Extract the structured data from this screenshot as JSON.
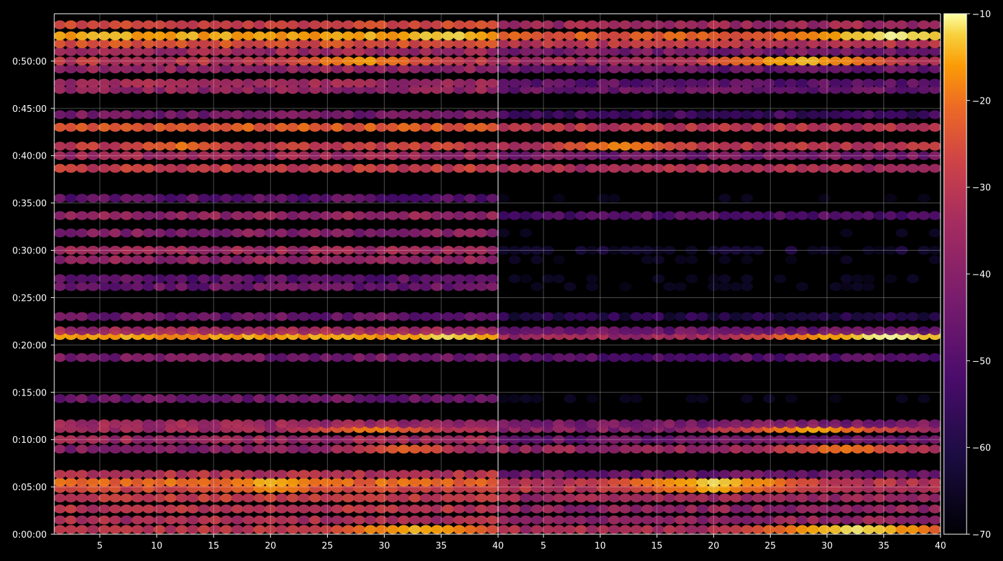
{
  "chart_data": {
    "type": "heatmap",
    "title": "",
    "xlabel": "",
    "ylabel": "",
    "colormap": "inferno",
    "background": "#000000",
    "grid": true,
    "panels": [
      {
        "name": "",
        "x_range": [
          1,
          40
        ],
        "x_ticks": [
          5,
          10,
          15,
          20,
          25,
          30,
          35,
          40
        ],
        "x_tick_labels": [
          "5",
          "10",
          "15",
          "20",
          "25",
          "30",
          "35",
          "40"
        ]
      },
      {
        "name": "",
        "x_range": [
          1,
          40
        ],
        "x_ticks": [
          5,
          10,
          15,
          20,
          25,
          30,
          35,
          40
        ],
        "x_tick_labels": [
          "5",
          "10",
          "15",
          "20",
          "25",
          "30",
          "35",
          "40"
        ]
      }
    ],
    "y_range_seconds": [
      0,
      3300
    ],
    "y_ticks_seconds": [
      0,
      300,
      600,
      900,
      1200,
      1500,
      1800,
      2100,
      2400,
      2700,
      3000
    ],
    "y_tick_labels": [
      "0:00:00",
      "0:05:00",
      "0:10:00",
      "0:15:00",
      "0:20:00",
      "0:25:00",
      "0:30:00",
      "0:35:00",
      "0:40:00",
      "0:45:00",
      "0:50:00"
    ],
    "colorbar": {
      "range": [
        -70,
        -10
      ],
      "ticks": [
        -70,
        -60,
        -50,
        -40,
        -30,
        -20,
        -10
      ],
      "tick_labels": [
        "−70",
        "−60",
        "−50",
        "−40",
        "−30",
        "−20",
        "−10"
      ]
    },
    "bands_seconds_db": [
      {
        "t": 30,
        "a": -40,
        "b": -42,
        "peak_x": 33,
        "peak_db": -18
      },
      {
        "t": 90,
        "a": -42,
        "b": -46
      },
      {
        "t": 160,
        "a": -40,
        "b": -46
      },
      {
        "t": 230,
        "a": -38,
        "b": -44
      },
      {
        "t": 290,
        "a": -36,
        "b": -40,
        "peak_x": 20,
        "peak_db": -25
      },
      {
        "t": 330,
        "a": -30,
        "b": -40,
        "peak_x": 20,
        "peak_db": -20
      },
      {
        "t": 380,
        "a": -40,
        "b": -52
      },
      {
        "t": 540,
        "a": -48,
        "b": -45,
        "peak_x": 32,
        "peak_db": -30
      },
      {
        "t": 600,
        "a": -44,
        "b": -52
      },
      {
        "t": 670,
        "a": -44,
        "b": -48,
        "peak_x": 29,
        "peak_db": -26
      },
      {
        "t": 700,
        "a": -45,
        "b": -50
      },
      {
        "t": 860,
        "a": -52,
        "b": -70
      },
      {
        "t": 1120,
        "a": -50,
        "b": -55
      },
      {
        "t": 1260,
        "a": -22,
        "b": -44,
        "peak_x": 36,
        "peak_db": -14
      },
      {
        "t": 1290,
        "a": -44,
        "b": -52
      },
      {
        "t": 1380,
        "a": -52,
        "b": -62
      },
      {
        "t": 1570,
        "a": -52,
        "b": -70
      },
      {
        "t": 1620,
        "a": -54,
        "b": -70
      },
      {
        "t": 1740,
        "a": -46,
        "b": -70
      },
      {
        "t": 1800,
        "a": -44,
        "b": -66
      },
      {
        "t": 1910,
        "a": -48,
        "b": -70
      },
      {
        "t": 2020,
        "a": -46,
        "b": -56
      },
      {
        "t": 2130,
        "a": -54,
        "b": -70
      },
      {
        "t": 2320,
        "a": -38,
        "b": -42
      },
      {
        "t": 2400,
        "a": -44,
        "b": -50
      },
      {
        "t": 2460,
        "a": -38,
        "b": -40,
        "peak_x": 12,
        "peak_db": -28
      },
      {
        "t": 2580,
        "a": -32,
        "b": -40
      },
      {
        "t": 2660,
        "a": -50,
        "b": -58
      },
      {
        "t": 2820,
        "a": -46,
        "b": -52
      },
      {
        "t": 2860,
        "a": -44,
        "b": -54
      },
      {
        "t": 2950,
        "a": -46,
        "b": -52
      },
      {
        "t": 3000,
        "a": -40,
        "b": -44,
        "peak_x": 28,
        "peak_db": -22
      },
      {
        "t": 3060,
        "a": -44,
        "b": -50
      },
      {
        "t": 3110,
        "a": -34,
        "b": -40
      },
      {
        "t": 3160,
        "a": -22,
        "b": -32,
        "peak_x": 36,
        "peak_db": -14
      },
      {
        "t": 3230,
        "a": -36,
        "b": -44
      }
    ]
  }
}
